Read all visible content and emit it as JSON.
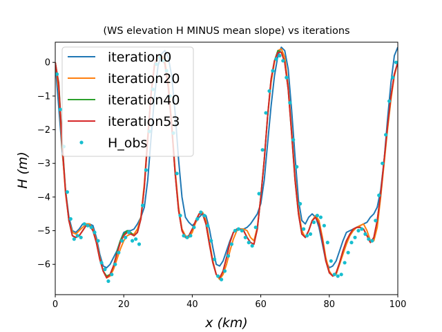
{
  "chart_data": {
    "type": "line",
    "title": "(WS elevation H MINUS mean slope) vs iterations",
    "xlabel": "x (km)",
    "ylabel": "H (m)",
    "xlim": [
      0,
      100
    ],
    "ylim": [
      -6.9,
      0.6
    ],
    "xticks": [
      0,
      20,
      40,
      60,
      80,
      100
    ],
    "yticks": [
      0,
      -1,
      -2,
      -3,
      -4,
      -5,
      -6
    ],
    "grid": false,
    "legend_position": "top-left",
    "series": [
      {
        "name": "iteration0",
        "color": "#1f77b4",
        "style": "line",
        "x": [
          0,
          2,
          3,
          4,
          5,
          6,
          7,
          8,
          9,
          10,
          11,
          12,
          13,
          14,
          15,
          16,
          17,
          18,
          19,
          20,
          21,
          22,
          23,
          24,
          25,
          26,
          27,
          28,
          29,
          30,
          31,
          32,
          33,
          34,
          35,
          36,
          37,
          38,
          39,
          40,
          41,
          42,
          43,
          44,
          45,
          46,
          47,
          48,
          49,
          50,
          51,
          52,
          53,
          54,
          55,
          56,
          57,
          58,
          59,
          60,
          61,
          62,
          63,
          64,
          65,
          66,
          67,
          68,
          69,
          70,
          71,
          72,
          73,
          74,
          75,
          76,
          77,
          78,
          79,
          80,
          81,
          82,
          83,
          84,
          85,
          86,
          87,
          88,
          89,
          90,
          91,
          92,
          93,
          94,
          95,
          96,
          97,
          98,
          99,
          100
        ],
        "values": [
          0,
          -2.6,
          -3.8,
          -4.6,
          -5.0,
          -5.05,
          -4.95,
          -4.8,
          -4.8,
          -4.8,
          -4.85,
          -5.2,
          -5.7,
          -6.05,
          -6.1,
          -6.0,
          -5.8,
          -5.6,
          -5.3,
          -5.05,
          -5.0,
          -5.0,
          -4.95,
          -4.8,
          -4.6,
          -4.3,
          -3.5,
          -2.2,
          -1.0,
          -0.1,
          0.25,
          0.35,
          0.15,
          -0.4,
          -1.5,
          -2.9,
          -4.0,
          -4.6,
          -4.75,
          -4.85,
          -4.75,
          -4.6,
          -4.5,
          -4.55,
          -4.95,
          -5.5,
          -6.0,
          -6.05,
          -5.9,
          -5.6,
          -5.3,
          -5.05,
          -5.0,
          -4.95,
          -4.95,
          -4.9,
          -4.8,
          -4.65,
          -4.5,
          -4.2,
          -3.5,
          -2.4,
          -1.3,
          -0.4,
          0.2,
          0.45,
          0.35,
          -0.2,
          -1.4,
          -2.8,
          -4.1,
          -4.7,
          -4.8,
          -4.6,
          -4.5,
          -4.6,
          -4.9,
          -5.4,
          -5.9,
          -6.1,
          -6.05,
          -5.9,
          -5.6,
          -5.3,
          -5.05,
          -5.0,
          -4.95,
          -4.9,
          -4.85,
          -4.8,
          -4.75,
          -4.6,
          -4.5,
          -4.3,
          -3.8,
          -2.9,
          -1.7,
          -0.6,
          0.2,
          0.45
        ]
      },
      {
        "name": "iteration20",
        "color": "#ff7f0e",
        "style": "line",
        "x": [
          0,
          1,
          2,
          3,
          4,
          5,
          6,
          7,
          8,
          9,
          10,
          11,
          12,
          13,
          14,
          15,
          16,
          17,
          18,
          19,
          20,
          21,
          22,
          23,
          24,
          25,
          26,
          27,
          28,
          29,
          30,
          31,
          32,
          33,
          34,
          35,
          36,
          37,
          38,
          39,
          40,
          41,
          42,
          43,
          44,
          45,
          46,
          47,
          48,
          49,
          50,
          51,
          52,
          53,
          54,
          55,
          56,
          57,
          58,
          59,
          60,
          61,
          62,
          63,
          64,
          65,
          66,
          67,
          68,
          69,
          70,
          71,
          72,
          73,
          74,
          75,
          76,
          77,
          78,
          79,
          80,
          81,
          82,
          83,
          84,
          85,
          86,
          87,
          88,
          89,
          90,
          91,
          92,
          93,
          94,
          95,
          96,
          97,
          98,
          99,
          100
        ],
        "values": [
          0,
          -0.8,
          -2.5,
          -3.9,
          -4.7,
          -5.05,
          -5.1,
          -5.0,
          -4.9,
          -4.8,
          -4.8,
          -4.95,
          -5.3,
          -5.8,
          -6.2,
          -6.4,
          -6.35,
          -6.15,
          -5.85,
          -5.55,
          -5.3,
          -5.15,
          -5.1,
          -5.1,
          -4.95,
          -4.6,
          -3.6,
          -2.2,
          -0.9,
          -0.1,
          0.15,
          0.2,
          0.05,
          -0.6,
          -1.8,
          -3.2,
          -4.3,
          -4.95,
          -5.15,
          -5.2,
          -5.05,
          -4.75,
          -4.5,
          -4.45,
          -4.7,
          -5.3,
          -5.9,
          -6.3,
          -6.45,
          -6.3,
          -6.0,
          -5.6,
          -5.25,
          -5.0,
          -4.95,
          -4.95,
          -5.0,
          -5.2,
          -5.3,
          -4.9,
          -4.0,
          -2.9,
          -1.6,
          -0.6,
          0.0,
          0.35,
          0.4,
          0.15,
          -0.7,
          -2.0,
          -3.4,
          -4.4,
          -5.0,
          -5.2,
          -5.0,
          -4.7,
          -4.55,
          -4.7,
          -5.2,
          -5.8,
          -6.2,
          -6.35,
          -6.3,
          -6.0,
          -5.7,
          -5.4,
          -5.15,
          -5.0,
          -4.9,
          -4.85,
          -4.8,
          -5.0,
          -5.3,
          -5.3,
          -4.9,
          -4.0,
          -3.0,
          -2.0,
          -1.1,
          -0.4,
          0.0
        ]
      },
      {
        "name": "iteration40",
        "color": "#2ca02c",
        "style": "line",
        "x": [
          0,
          1,
          2,
          3,
          4,
          5,
          6,
          7,
          8,
          9,
          10,
          11,
          12,
          13,
          14,
          15,
          16,
          17,
          18,
          19,
          20,
          21,
          22,
          23,
          24,
          25,
          26,
          27,
          28,
          29,
          30,
          31,
          32,
          33,
          34,
          35,
          36,
          37,
          38,
          39,
          40,
          41,
          42,
          43,
          44,
          45,
          46,
          47,
          48,
          49,
          50,
          51,
          52,
          53,
          54,
          55,
          56,
          57,
          58,
          59,
          60,
          61,
          62,
          63,
          64,
          65,
          66,
          67,
          68,
          69,
          70,
          71,
          72,
          73,
          74,
          75,
          76,
          77,
          78,
          79,
          80,
          81,
          82,
          83,
          84,
          85,
          86,
          87,
          88,
          89,
          90,
          91,
          92,
          93,
          94,
          95,
          96,
          97,
          98,
          99,
          100
        ],
        "values": [
          0,
          -0.6,
          -2.3,
          -3.8,
          -4.7,
          -5.15,
          -5.2,
          -5.15,
          -5.0,
          -4.85,
          -4.85,
          -5.0,
          -5.35,
          -5.85,
          -6.2,
          -6.35,
          -6.3,
          -6.05,
          -5.65,
          -5.3,
          -5.1,
          -5.0,
          -5.05,
          -5.15,
          -5.05,
          -4.65,
          -3.7,
          -2.3,
          -0.9,
          -0.05,
          0.2,
          0.15,
          -0.05,
          -0.75,
          -1.9,
          -3.3,
          -4.4,
          -5.0,
          -5.2,
          -5.15,
          -4.95,
          -4.7,
          -4.5,
          -4.5,
          -4.8,
          -5.4,
          -5.95,
          -6.3,
          -6.4,
          -6.2,
          -5.8,
          -5.35,
          -5.05,
          -4.95,
          -4.95,
          -5.0,
          -5.2,
          -5.35,
          -5.4,
          -4.95,
          -4.0,
          -2.9,
          -1.6,
          -0.5,
          0.05,
          0.35,
          0.3,
          0.0,
          -0.8,
          -2.1,
          -3.5,
          -4.5,
          -5.1,
          -5.2,
          -5.0,
          -4.7,
          -4.6,
          -4.8,
          -5.3,
          -5.9,
          -6.25,
          -6.35,
          -6.25,
          -5.95,
          -5.6,
          -5.3,
          -5.1,
          -4.95,
          -4.9,
          -4.9,
          -4.95,
          -5.15,
          -5.35,
          -5.2,
          -4.7,
          -3.9,
          -2.9,
          -1.9,
          -1.0,
          -0.35,
          0.0
        ]
      },
      {
        "name": "iteration53",
        "color": "#d62728",
        "style": "line",
        "x": [
          0,
          1,
          2,
          3,
          4,
          5,
          6,
          7,
          8,
          9,
          10,
          11,
          12,
          13,
          14,
          15,
          16,
          17,
          18,
          19,
          20,
          21,
          22,
          23,
          24,
          25,
          26,
          27,
          28,
          29,
          30,
          31,
          32,
          33,
          34,
          35,
          36,
          37,
          38,
          39,
          40,
          41,
          42,
          43,
          44,
          45,
          46,
          47,
          48,
          49,
          50,
          51,
          52,
          53,
          54,
          55,
          56,
          57,
          58,
          59,
          60,
          61,
          62,
          63,
          64,
          65,
          66,
          67,
          68,
          69,
          70,
          71,
          72,
          73,
          74,
          75,
          76,
          77,
          78,
          79,
          80,
          81,
          82,
          83,
          84,
          85,
          86,
          87,
          88,
          89,
          90,
          91,
          92,
          93,
          94,
          95,
          96,
          97,
          98,
          99,
          100
        ],
        "values": [
          0,
          -0.65,
          -2.35,
          -3.85,
          -4.7,
          -5.15,
          -5.2,
          -5.15,
          -5.0,
          -4.85,
          -4.85,
          -5.0,
          -5.35,
          -5.85,
          -6.2,
          -6.4,
          -6.3,
          -6.05,
          -5.7,
          -5.35,
          -5.15,
          -5.05,
          -5.1,
          -5.15,
          -5.05,
          -4.65,
          -3.7,
          -2.3,
          -0.9,
          -0.05,
          0.2,
          0.15,
          -0.05,
          -0.75,
          -1.9,
          -3.3,
          -4.4,
          -5.0,
          -5.2,
          -5.15,
          -4.95,
          -4.7,
          -4.5,
          -4.5,
          -4.8,
          -5.4,
          -5.95,
          -6.3,
          -6.4,
          -6.2,
          -5.8,
          -5.35,
          -5.05,
          -4.95,
          -4.95,
          -5.0,
          -5.2,
          -5.35,
          -5.4,
          -4.95,
          -4.0,
          -2.9,
          -1.6,
          -0.5,
          0.05,
          0.3,
          0.3,
          0.0,
          -0.8,
          -2.1,
          -3.5,
          -4.5,
          -5.1,
          -5.2,
          -5.0,
          -4.7,
          -4.6,
          -4.8,
          -5.3,
          -5.9,
          -6.25,
          -6.35,
          -6.25,
          -5.95,
          -5.6,
          -5.3,
          -5.1,
          -4.95,
          -4.9,
          -4.9,
          -4.95,
          -5.15,
          -5.35,
          -5.2,
          -4.7,
          -3.9,
          -2.9,
          -1.9,
          -1.0,
          -0.35,
          0.0
        ]
      },
      {
        "name": "H_obs",
        "color": "#17becf",
        "style": "points",
        "x": [
          0.5,
          1.5,
          2.5,
          3.5,
          4.5,
          5.5,
          6.5,
          7.5,
          8.5,
          9.5,
          10.5,
          11.5,
          12.5,
          13.5,
          14.5,
          15.5,
          16.5,
          17.5,
          18.5,
          19.5,
          20.5,
          21.5,
          22.5,
          23.5,
          24.5,
          25.5,
          26.5,
          27.5,
          28.5,
          29.5,
          30.5,
          31.5,
          32.5,
          33.5,
          34.5,
          35.5,
          36.5,
          37.5,
          38.5,
          39.5,
          40.5,
          41.5,
          42.5,
          43.5,
          44.5,
          45.5,
          46.5,
          47.5,
          48.5,
          49.5,
          50.5,
          51.5,
          52.5,
          53.5,
          54.5,
          55.5,
          56.5,
          57.5,
          58.5,
          59.5,
          60.5,
          61.5,
          62.5,
          63.5,
          64.5,
          65.5,
          66.5,
          67.5,
          68.5,
          69.5,
          70.5,
          71.5,
          72.5,
          73.5,
          74.5,
          75.5,
          76.5,
          77.5,
          78.5,
          79.5,
          80.5,
          81.5,
          82.5,
          83.5,
          84.5,
          85.5,
          86.5,
          87.5,
          88.5,
          89.5,
          90.5,
          91.5,
          92.5,
          93.5,
          94.5,
          95.5,
          96.5,
          97.5,
          98.5,
          99.5
        ],
        "values": [
          -0.35,
          -1.4,
          -2.5,
          -3.85,
          -4.65,
          -5.25,
          -5.15,
          -5.2,
          -4.8,
          -4.85,
          -4.9,
          -5.05,
          -5.3,
          -5.95,
          -6.15,
          -6.5,
          -6.3,
          -6.0,
          -5.65,
          -5.3,
          -5.2,
          -5.05,
          -5.3,
          -5.25,
          -5.4,
          -4.25,
          -3.2,
          -2.05,
          -0.8,
          -0.05,
          0.15,
          0.05,
          -0.25,
          -1.0,
          -2.1,
          -3.3,
          -4.55,
          -5.15,
          -5.2,
          -5.15,
          -4.9,
          -4.65,
          -4.45,
          -4.55,
          -4.85,
          -5.3,
          -5.85,
          -6.35,
          -6.45,
          -6.2,
          -5.75,
          -5.4,
          -5.0,
          -4.95,
          -5.0,
          -5.2,
          -5.35,
          -5.45,
          -4.9,
          -3.9,
          -2.6,
          -1.5,
          -0.85,
          -0.25,
          0.1,
          0.2,
          0.05,
          -0.45,
          -1.2,
          -2.3,
          -3.1,
          -4.2,
          -4.95,
          -5.15,
          -5.1,
          -4.75,
          -4.55,
          -4.6,
          -4.85,
          -5.35,
          -5.9,
          -6.3,
          -6.35,
          -6.3,
          -5.95,
          -5.65,
          -5.35,
          -5.2,
          -5.0,
          -4.95,
          -5.1,
          -5.25,
          -5.3,
          -4.7,
          -3.95,
          -3.0,
          -2.15,
          -1.15,
          -0.45,
          0.0
        ]
      }
    ]
  }
}
